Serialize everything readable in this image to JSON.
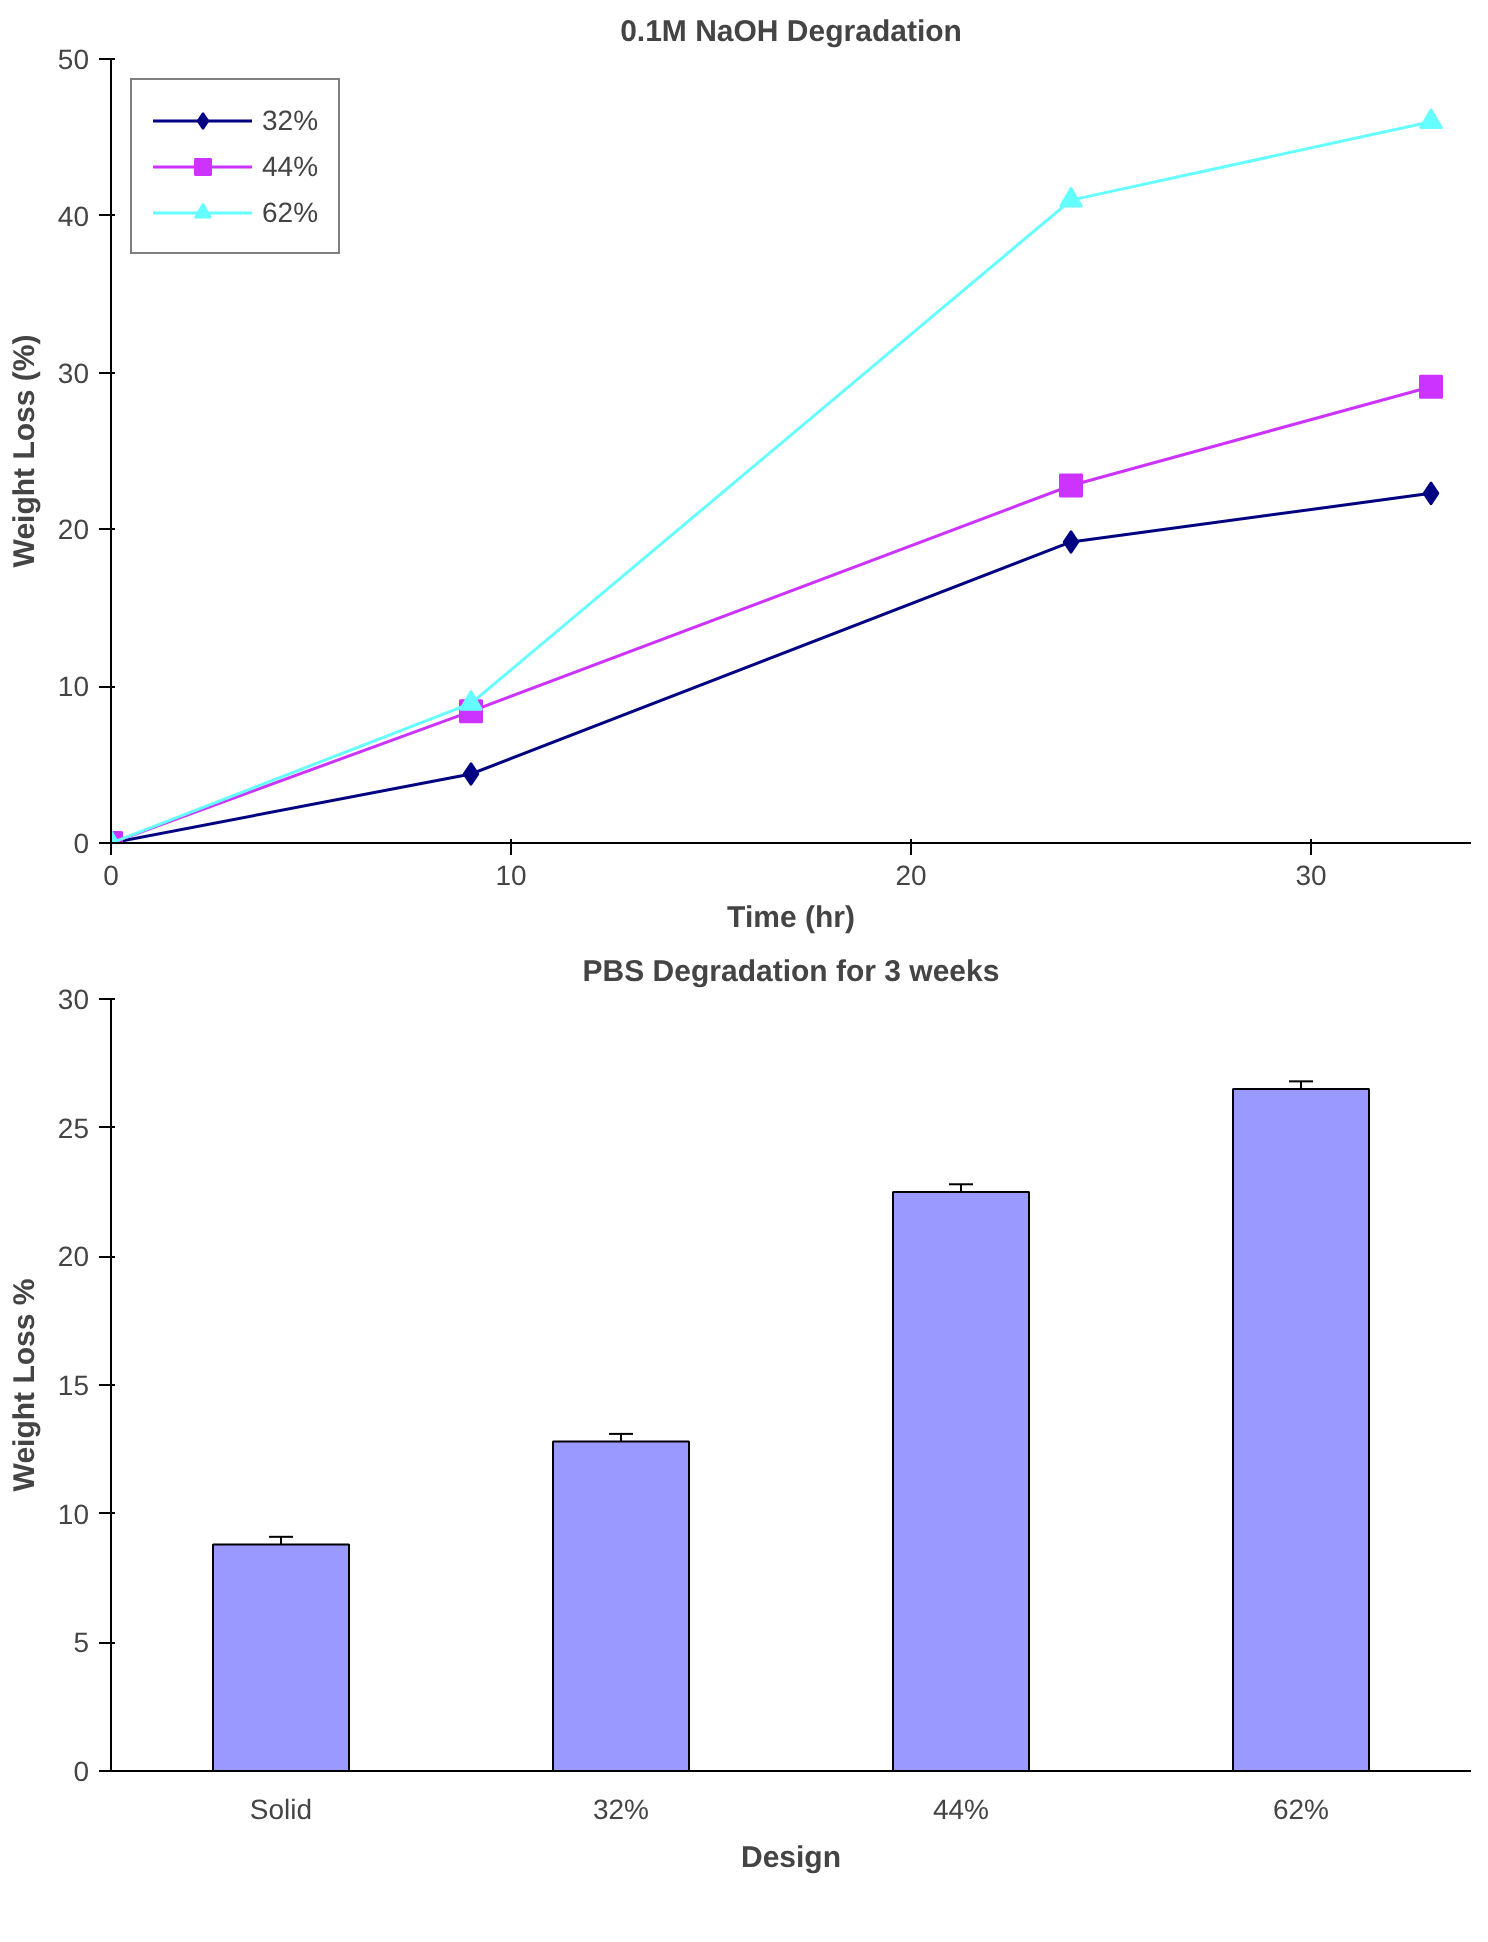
{
  "chart_data": [
    {
      "type": "line",
      "title": "0.1M NaOH Degradation",
      "xlabel": "Time (hr)",
      "ylabel": "Weight Loss (%)",
      "x": [
        0,
        9,
        24,
        33
      ],
      "xlim": [
        0,
        34
      ],
      "xticks": [
        0,
        10,
        20,
        30
      ],
      "ylim": [
        0,
        50
      ],
      "yticks": [
        0,
        10,
        20,
        30,
        40,
        50
      ],
      "legend": "top left",
      "grid": false,
      "series": [
        {
          "name": "32%",
          "color": "#000080",
          "marker": "diamond",
          "values": [
            0,
            4.4,
            19.2,
            22.3
          ]
        },
        {
          "name": "44%",
          "color": "#cc33ff",
          "marker": "square",
          "values": [
            0,
            8.4,
            22.8,
            29.1
          ]
        },
        {
          "name": "62%",
          "color": "#66ffff",
          "marker": "triangle",
          "values": [
            0,
            8.9,
            41.0,
            46.0
          ]
        }
      ]
    },
    {
      "type": "bar",
      "title": "PBS Degradation for 3 weeks",
      "xlabel": "Design",
      "ylabel": "Weight Loss %",
      "categories": [
        "Solid",
        "32%",
        "44%",
        "62%"
      ],
      "values": [
        8.8,
        12.8,
        22.5,
        26.5
      ],
      "errors": [
        0.3,
        0.3,
        0.3,
        0.3
      ],
      "color": "#9999ff",
      "ylim": [
        0,
        30
      ],
      "yticks": [
        0,
        5,
        10,
        15,
        20,
        25,
        30
      ],
      "grid": false
    }
  ]
}
